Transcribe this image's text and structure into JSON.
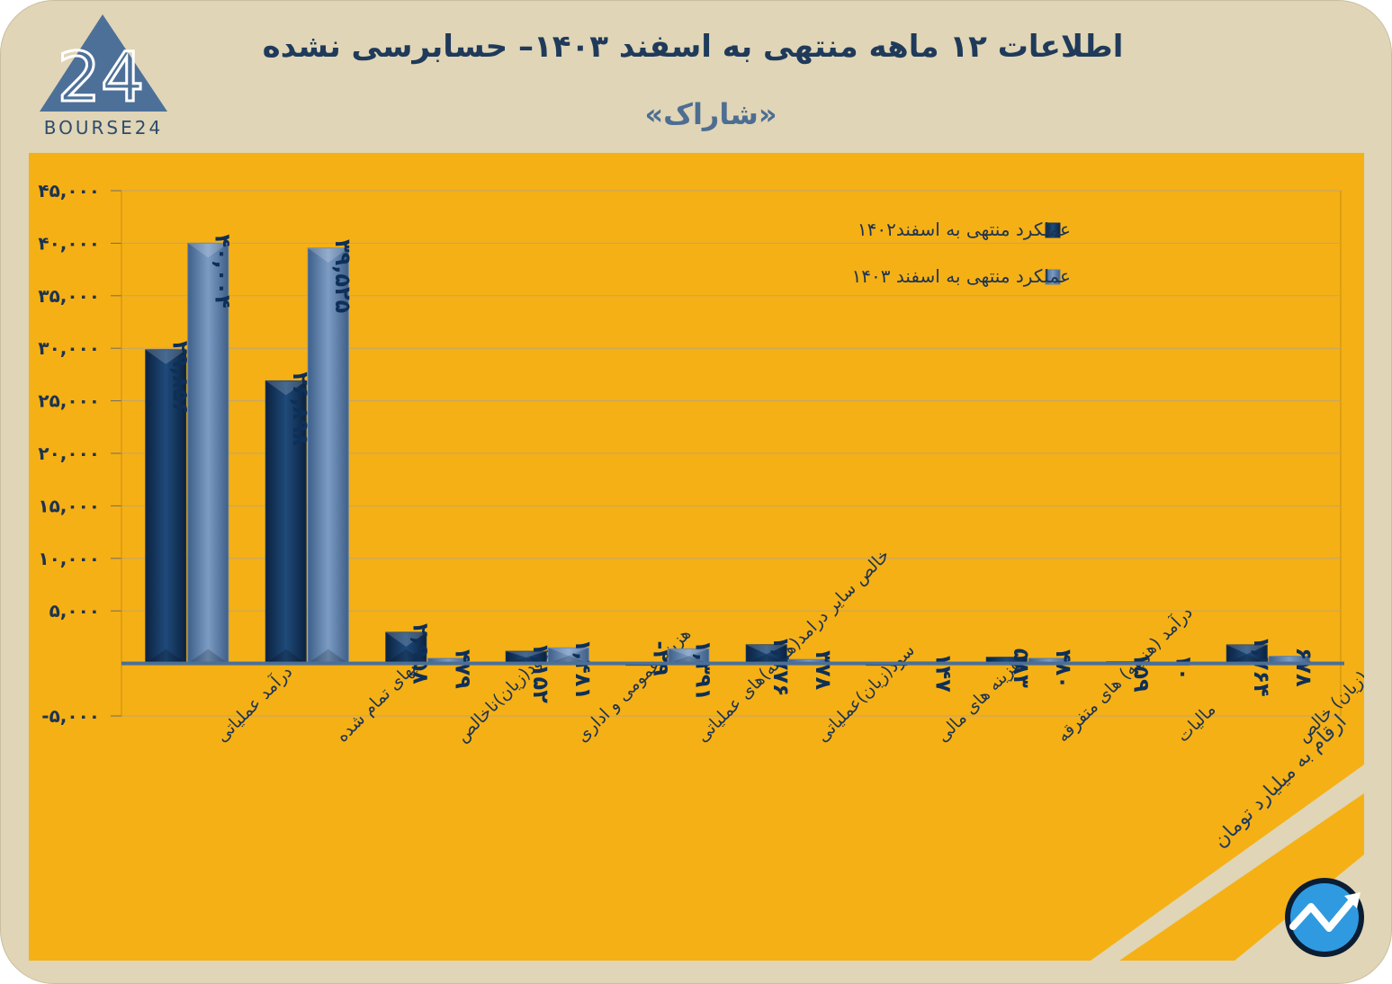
{
  "header": {
    "title": "اطلاعات ۱۲ ماهه منتهی به اسفند  ۱۴۰۳– حسابرسی نشده",
    "subtitle": "«شاراک»",
    "logo_text": "BOURSE24",
    "logo_mark": "24"
  },
  "footer": {
    "units_note": "ارقام به میلیارد تومان"
  },
  "colors": {
    "panel": "#f5b015",
    "frame": "#e0d5b6",
    "series_1402": "#14365e",
    "series_1403": "#5c7fa9",
    "value_label": "#0e2f57"
  },
  "chart_data": {
    "type": "bar",
    "title": "اطلاعات ۱۲ ماهه منتهی به اسفند  ۱۴۰۳– حسابرسی نشده",
    "ylim": [
      -5000,
      45000
    ],
    "yticks": [
      45000,
      40000,
      35000,
      30000,
      25000,
      20000,
      15000,
      10000,
      5000,
      -5000
    ],
    "ytick_labels": [
      "۴۵,۰۰۰",
      "۴۰,۰۰۰",
      "۳۵,۰۰۰",
      "۳۰,۰۰۰",
      "۲۵,۰۰۰",
      "۲۰,۰۰۰",
      "۱۵,۰۰۰",
      "۱۰,۰۰۰",
      "۵,۰۰۰",
      "-۵,۰۰۰"
    ],
    "grid": true,
    "legend_position": "top-right",
    "categories": [
      "درآمد عملیاتی",
      "بهای تمام شده",
      "سود(زیان)ناخالص",
      "هزینه عمومی و اداری",
      "خالص سایر درامد(هزینه)های عملیاتی",
      "سود(زیان)عملیاتی",
      "هزینه های مالی",
      "درآمد (هزینه) های متفرقه",
      "مالیات",
      "سود(زیان) خالص"
    ],
    "series": [
      {
        "name": "عملکرد منتهی به اسفند۱۴۰۲",
        "values": [
          29856,
          26898,
          2958,
          1152,
          -29,
          1776,
          0,
          583,
          159,
          1764
        ],
        "labels": [
          "۲۹,۸۵۶",
          "۲۶,۸۹۸",
          "۲,۹۵۸",
          "۱,۱۵۲",
          "-۲۹",
          "۱,۷۷۶",
          "",
          "۵۸۳",
          "۱۵۹",
          "۱,۷۶۴"
        ]
      },
      {
        "name": "عملکرد منتهی به اسفند ۱۴۰۳",
        "values": [
          40004,
          39525,
          479,
          1481,
          1391,
          378,
          147,
          480,
          10,
          678
        ],
        "labels": [
          "۴۰,۰۰۴",
          "۳۹,۵۲۵",
          "۴۷۹",
          "۱,۴۸۱",
          "۱,۳۹۱",
          "۳۷۸",
          "۱۴۷",
          "۴۸۰",
          "۱۰",
          "۶۷۸"
        ]
      }
    ]
  }
}
